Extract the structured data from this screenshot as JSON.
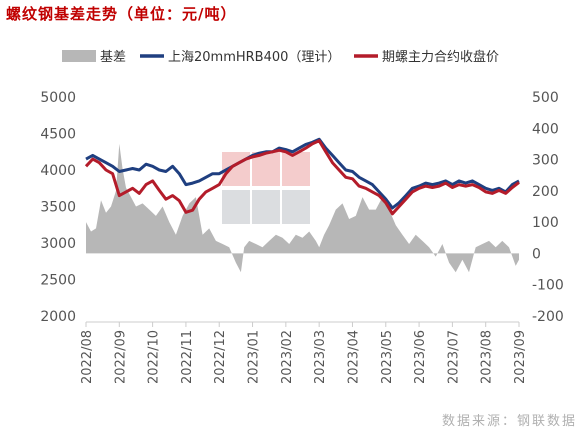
{
  "title": "螺纹钢基差走势（单位：元/吨）",
  "source": "数据来源：钢联数据",
  "chart_data": {
    "type": "line",
    "title": "螺纹钢基差走势（单位：元/吨）",
    "legend_position": "top",
    "x_ticks": [
      "2022/08",
      "2022/09",
      "2022/10",
      "2022/11",
      "2022/12",
      "2023/01",
      "2023/02",
      "2023/03",
      "2023/04",
      "2023/05",
      "2023/06",
      "2023/07",
      "2023/08",
      "2023/09"
    ],
    "y_left": {
      "min": 2000,
      "max": 5000,
      "ticks": [
        2000,
        2500,
        3000,
        3500,
        4000,
        4500,
        5000
      ]
    },
    "y_right": {
      "min": -200,
      "max": 500,
      "ticks": [
        -200,
        -100,
        0,
        100,
        200,
        300,
        400,
        500
      ]
    },
    "series": [
      {
        "name": "基差",
        "kind": "area",
        "axis": "right",
        "color": "#b7b7b7",
        "x": [
          0,
          0.15,
          0.3,
          0.45,
          0.6,
          0.75,
          0.9,
          1.0,
          1.1,
          1.2,
          1.35,
          1.5,
          1.7,
          1.9,
          2.1,
          2.3,
          2.5,
          2.7,
          2.9,
          3.1,
          3.3,
          3.5,
          3.7,
          3.9,
          4.1,
          4.3,
          4.5,
          4.65,
          4.75,
          4.9,
          5.1,
          5.3,
          5.5,
          5.7,
          5.9,
          6.1,
          6.3,
          6.5,
          6.7,
          6.9,
          7.0,
          7.15,
          7.3,
          7.5,
          7.7,
          7.9,
          8.1,
          8.3,
          8.5,
          8.7,
          8.9,
          9.1,
          9.3,
          9.5,
          9.7,
          9.9,
          10.1,
          10.3,
          10.5,
          10.7,
          10.9,
          11.1,
          11.3,
          11.5,
          11.7,
          11.9,
          12.1,
          12.3,
          12.5,
          12.7,
          12.9,
          13.0
        ],
        "values": [
          100,
          70,
          80,
          170,
          130,
          150,
          200,
          350,
          270,
          210,
          180,
          150,
          160,
          140,
          120,
          150,
          100,
          60,
          120,
          160,
          180,
          60,
          80,
          40,
          30,
          20,
          -30,
          -60,
          20,
          40,
          30,
          20,
          40,
          60,
          50,
          30,
          60,
          50,
          70,
          40,
          20,
          60,
          90,
          140,
          160,
          110,
          120,
          180,
          140,
          140,
          180,
          140,
          90,
          60,
          30,
          60,
          40,
          20,
          -10,
          30,
          -30,
          -60,
          -20,
          -60,
          20,
          30,
          40,
          20,
          40,
          20,
          -40,
          -20
        ]
      },
      {
        "name": "上海20mmHRB400（理计）",
        "kind": "line",
        "axis": "left",
        "color": "#1f3f80",
        "x": [
          0,
          0.2,
          0.4,
          0.6,
          0.8,
          1.0,
          1.2,
          1.4,
          1.6,
          1.8,
          2.0,
          2.2,
          2.4,
          2.6,
          2.8,
          3.0,
          3.2,
          3.4,
          3.6,
          3.8,
          4.0,
          4.2,
          4.4,
          4.6,
          4.8,
          5.0,
          5.2,
          5.4,
          5.6,
          5.8,
          6.0,
          6.2,
          6.4,
          6.6,
          6.8,
          7.0,
          7.2,
          7.4,
          7.6,
          7.8,
          8.0,
          8.2,
          8.4,
          8.6,
          8.8,
          9.0,
          9.2,
          9.4,
          9.6,
          9.8,
          10.0,
          10.2,
          10.4,
          10.6,
          10.8,
          11.0,
          11.2,
          11.4,
          11.6,
          11.8,
          12.0,
          12.2,
          12.4,
          12.6,
          12.8,
          13.0
        ],
        "values": [
          4150,
          4200,
          4150,
          4100,
          4050,
          3980,
          4000,
          4020,
          4000,
          4080,
          4050,
          4000,
          3980,
          4050,
          3950,
          3800,
          3820,
          3850,
          3900,
          3950,
          3950,
          4000,
          4050,
          4100,
          4150,
          4200,
          4230,
          4250,
          4250,
          4300,
          4280,
          4250,
          4300,
          4350,
          4380,
          4420,
          4300,
          4200,
          4100,
          4000,
          3980,
          3900,
          3850,
          3800,
          3700,
          3600,
          3480,
          3550,
          3650,
          3750,
          3780,
          3820,
          3800,
          3820,
          3850,
          3800,
          3850,
          3820,
          3850,
          3800,
          3750,
          3720,
          3750,
          3700,
          3800,
          3850
        ]
      },
      {
        "name": "期螺主力合约收盘价",
        "kind": "line",
        "axis": "left",
        "color": "#b41c2a",
        "x": [
          0,
          0.2,
          0.4,
          0.6,
          0.8,
          1.0,
          1.2,
          1.4,
          1.6,
          1.8,
          2.0,
          2.2,
          2.4,
          2.6,
          2.8,
          3.0,
          3.2,
          3.4,
          3.6,
          3.8,
          4.0,
          4.2,
          4.4,
          4.6,
          4.8,
          5.0,
          5.2,
          5.4,
          5.6,
          5.8,
          6.0,
          6.2,
          6.4,
          6.6,
          6.8,
          7.0,
          7.2,
          7.4,
          7.6,
          7.8,
          8.0,
          8.2,
          8.4,
          8.6,
          8.8,
          9.0,
          9.2,
          9.4,
          9.6,
          9.8,
          10.0,
          10.2,
          10.4,
          10.6,
          10.8,
          11.0,
          11.2,
          11.4,
          11.6,
          11.8,
          12.0,
          12.2,
          12.4,
          12.6,
          12.8,
          13.0
        ],
        "values": [
          4050,
          4150,
          4100,
          4000,
          3950,
          3650,
          3700,
          3750,
          3680,
          3800,
          3850,
          3720,
          3600,
          3650,
          3580,
          3420,
          3450,
          3600,
          3700,
          3750,
          3800,
          3950,
          4050,
          4100,
          4150,
          4180,
          4200,
          4230,
          4250,
          4270,
          4250,
          4200,
          4250,
          4300,
          4360,
          4400,
          4250,
          4100,
          4000,
          3900,
          3880,
          3780,
          3750,
          3700,
          3650,
          3550,
          3400,
          3500,
          3600,
          3700,
          3750,
          3780,
          3760,
          3780,
          3820,
          3760,
          3800,
          3780,
          3800,
          3760,
          3700,
          3680,
          3720,
          3680,
          3760,
          3830
        ]
      }
    ]
  }
}
